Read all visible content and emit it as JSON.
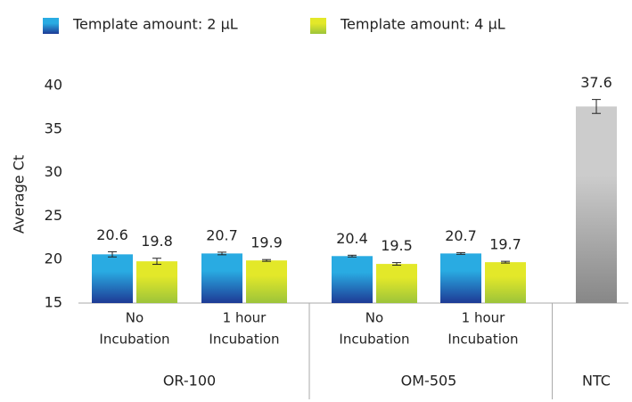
{
  "chart_data": {
    "type": "bar",
    "y_label": "Average Ct",
    "categories": [
      [
        "No",
        "Incubation"
      ],
      [
        "1 hour",
        "Incubation"
      ],
      [
        "No",
        "Incubation"
      ],
      [
        "1 hour",
        "Incubation"
      ],
      null
    ],
    "groups": [
      {
        "label": "OR-100",
        "span": [
          0,
          1
        ]
      },
      {
        "label": "OM-505",
        "span": [
          2,
          3
        ]
      },
      {
        "label": "NTC",
        "span": [
          4,
          4
        ]
      }
    ],
    "series": [
      {
        "name": "Template amount:  2 µL",
        "color": "#29abe2",
        "gradient": [
          "#29abe2",
          "#1e3a95"
        ],
        "values": [
          20.6,
          20.7,
          20.4,
          20.7,
          null
        ],
        "errors": [
          0.3,
          0.15,
          0.1,
          0.1,
          null
        ]
      },
      {
        "name": "Template amount:  4 µL",
        "color": "#d9e021",
        "gradient": [
          "#e3e829",
          "#9cc43a"
        ],
        "values": [
          19.8,
          19.9,
          19.5,
          19.7,
          null
        ],
        "errors": [
          0.35,
          0.1,
          0.15,
          0.1,
          null
        ]
      },
      {
        "color": "#b3b3b3",
        "gradient": [
          "#cccccc",
          "#878787"
        ],
        "values": [
          null,
          null,
          null,
          null,
          37.6
        ],
        "errors": [
          null,
          null,
          null,
          null,
          0.8
        ]
      }
    ],
    "ylim": [
      15,
      40
    ],
    "yticks": [
      15,
      20,
      25,
      30,
      35,
      40
    ],
    "grid": false
  }
}
